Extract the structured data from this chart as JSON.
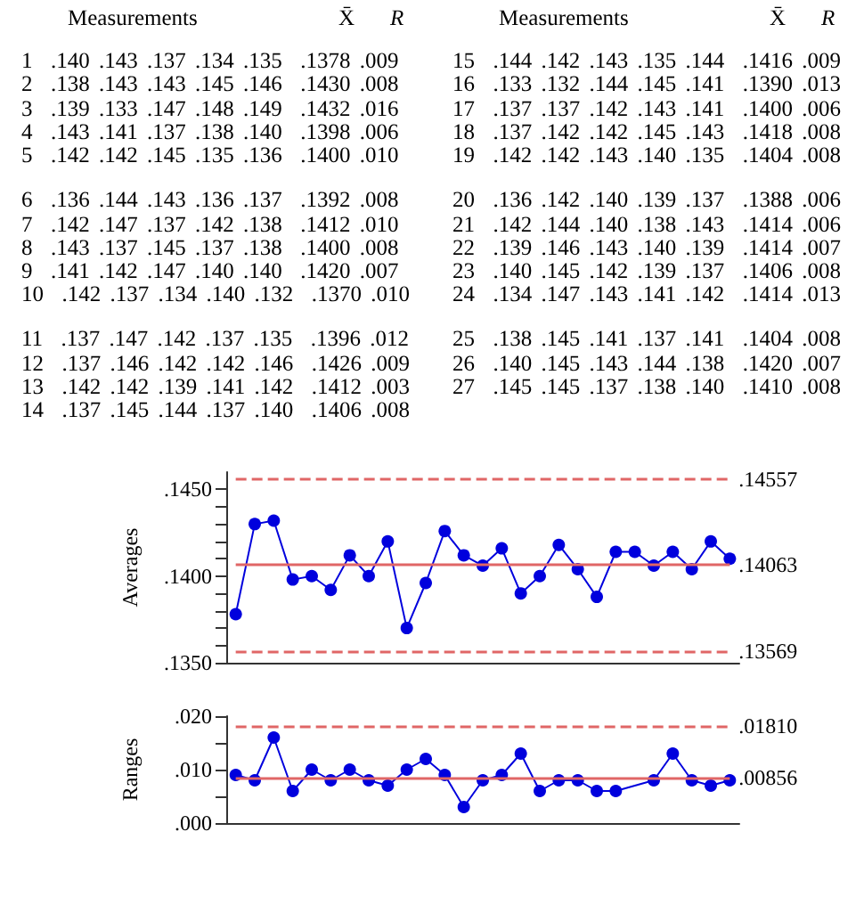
{
  "chart_data": [
    {
      "type": "other",
      "annotations": [
        "Measurements",
        "X̄",
        "R",
        "Measurements",
        "X̄",
        "R",
        "1 .140 .143 .137 .134 .135 .1378 .009",
        "2 .138 .143 .143 .145 .146 .1430 .008",
        "3 .139 .133 .147 .148 .149 .1432 .016",
        "4 .143 .141 .137 .138 .140 .1398 .006",
        "5 .142 .142 .145 .135 .136 .1400 .010",
        "6 .136 .144 .143 .136 .137 .1392 .008",
        "7 .142 .147 .137 .142 .138 .1412 .010",
        "8 .143 .137 .145 .137 .138 .1400 .008",
        "9 .141 .142 .147 .140 .140 .1420 .007",
        "10 .142 .137 .134 .140 .132 .1370 .010",
        "11 .137 .147 .142 .137 .135 .1396 .012",
        "12 .137 .146 .142 .142 .146 .1426 .009",
        "13 .142 .142 .139 .141 .142 .1412 .003",
        "14 .137 .145 .144 .137 .140 .1406 .008",
        "15 .144 .142 .143 .135 .144 .1416 .009",
        "16 .133 .132 .144 .145 .141 .1390 .013",
        "17 .137 .137 .142 .143 .141 .1400 .006",
        "18 .137 .142 .142 .145 .143 .1418 .008",
        "19 .142 .142 .143 .140 .135 .1404 .008",
        "20 .136 .142 .140 .139 .137 .1388 .006",
        "21 .142 .144 .140 .138 .143 .1414 .006",
        "22 .139 .146 .143 .140 .139 .1414 .007",
        "23 .140 .145 .142 .139 .137 .1406 .008",
        "24 .134 .147 .143 .141 .142 .1414 .013",
        "25 .138 .145 .141 .137 .141 .1404 .008",
        "26 .140 .145 .143 .144 .138 .1420 .007",
        "27 .145 .145 .137 .138 .140 .1410 .008"
      ]
    },
    {
      "type": "line",
      "ylabel": "Averages",
      "color": "#0000dd",
      "marker": "circle",
      "categories": [
        null,
        null,
        null,
        null,
        null,
        null,
        null,
        null,
        null,
        null,
        null,
        null,
        null,
        null,
        null,
        null,
        null,
        null,
        null,
        null,
        null,
        null,
        null,
        null,
        null,
        null,
        null
      ],
      "values": [
        0.1378,
        0.143,
        0.1432,
        0.1398,
        0.14,
        0.1392,
        0.1412,
        0.14,
        0.142,
        0.137,
        0.1396,
        0.1426,
        0.1412,
        0.1406,
        0.1416,
        0.139,
        0.14,
        0.1418,
        0.1404,
        0.1388,
        0.1414,
        0.1414,
        0.1406,
        0.1414,
        0.1404,
        0.142,
        0.141
      ],
      "ylim": [
        0.135,
        0.146
      ],
      "yticks": [
        {
          "value": 0.135,
          "label": ".1350"
        },
        {
          "value": 0.136,
          "label": null
        },
        {
          "value": 0.137,
          "label": null
        },
        {
          "value": 0.138,
          "label": null
        },
        {
          "value": 0.139,
          "label": null
        },
        {
          "value": 0.14,
          "label": ".1400"
        },
        {
          "value": 0.141,
          "label": null
        },
        {
          "value": 0.142,
          "label": null
        },
        {
          "value": 0.143,
          "label": null
        },
        {
          "value": 0.144,
          "label": null
        },
        {
          "value": 0.145,
          "label": ".1450"
        }
      ],
      "ref_lines": [
        {
          "axis": "y",
          "value": 0.14557,
          "label": ".14557",
          "color": "#e06666",
          "line_style": "dashed"
        },
        {
          "axis": "y",
          "value": 0.14063,
          "label": ".14063",
          "color": "#e06666",
          "line_style": "solid"
        },
        {
          "axis": "y",
          "value": 0.13569,
          "label": ".13569",
          "color": "#e06666",
          "line_style": "dashed"
        }
      ]
    },
    {
      "type": "line",
      "ylabel": "Ranges",
      "color": "#0000dd",
      "marker": "circle",
      "categories": [
        null,
        null,
        null,
        null,
        null,
        null,
        null,
        null,
        null,
        null,
        null,
        null,
        null,
        null,
        null,
        null,
        null,
        null,
        null,
        null,
        null,
        null,
        null,
        null,
        null,
        null,
        null
      ],
      "values": [
        0.009,
        0.008,
        0.016,
        0.006,
        0.01,
        0.008,
        0.01,
        0.008,
        0.007,
        0.01,
        0.012,
        0.009,
        0.003,
        0.008,
        0.009,
        0.013,
        0.006,
        0.008,
        0.008,
        0.006,
        0.006,
        null,
        0.008,
        0.013,
        0.008,
        0.007,
        0.008
      ],
      "ylim": [
        0,
        0.02
      ],
      "yticks": [
        {
          "value": 0,
          "label": ".000"
        },
        {
          "value": 0.005,
          "label": null
        },
        {
          "value": 0.01,
          "label": ".010"
        },
        {
          "value": 0.015,
          "label": null
        },
        {
          "value": 0.02,
          "label": ".020"
        }
      ],
      "ref_lines": [
        {
          "axis": "y",
          "value": 0.0181,
          "label": ".01810",
          "color": "#e06666",
          "line_style": "dashed"
        },
        {
          "axis": "y",
          "value": 0.00856,
          "label": ".00856",
          "color": "#e06666",
          "line_style": "solid"
        }
      ]
    }
  ]
}
